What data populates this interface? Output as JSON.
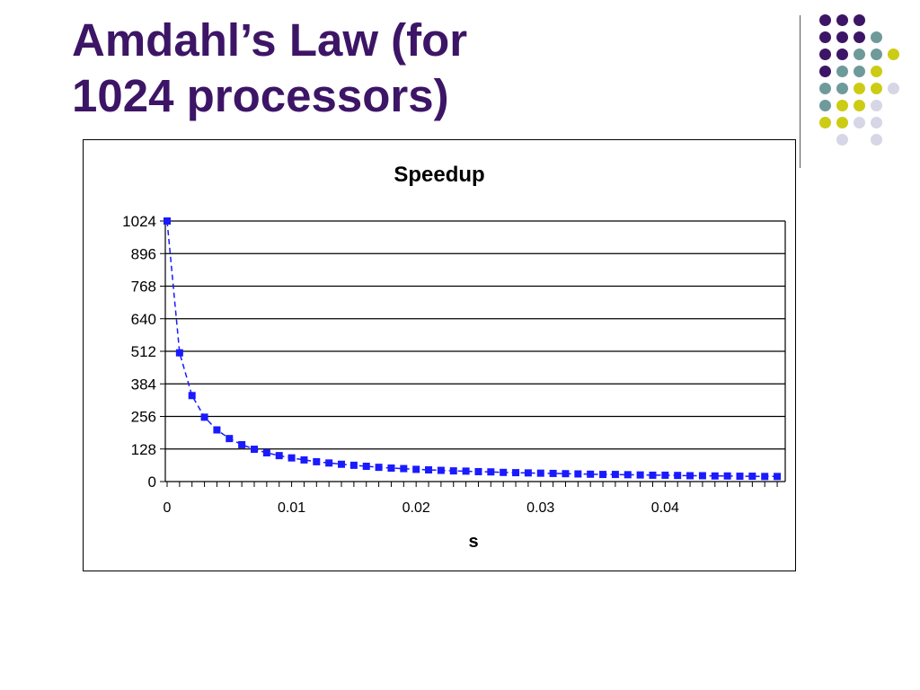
{
  "slide": {
    "title_line1": "Amdahl’s Law (for",
    "title_line2": "1024 processors)",
    "title_color": "#3d1566"
  },
  "decoration": {
    "dot_colors": {
      "purple": "#3d1566",
      "teal": "#6f9a9a",
      "yellow": "#cccc14",
      "lavender": "#d6d6e6"
    }
  },
  "chart_data": {
    "type": "line",
    "title": "Speedup",
    "xlabel": "s",
    "ylabel": "",
    "xlim": [
      0,
      0.049
    ],
    "ylim": [
      0,
      1024
    ],
    "x_ticks": [
      0,
      0.01,
      0.02,
      0.03,
      0.04
    ],
    "x_tick_labels": [
      "0",
      "0.01",
      "0.02",
      "0.03",
      "0.04"
    ],
    "y_ticks": [
      0,
      128,
      256,
      384,
      512,
      640,
      768,
      896,
      1024
    ],
    "y_tick_labels": [
      "0",
      "128",
      "256",
      "384",
      "512",
      "640",
      "768",
      "896",
      "1024"
    ],
    "grid": true,
    "legend": "none",
    "line_style": "dashed",
    "marker": "square",
    "series_color": "#1a1aff",
    "series": [
      {
        "name": "",
        "x": [
          0,
          0.001,
          0.002,
          0.003,
          0.004,
          0.005,
          0.006,
          0.007,
          0.008,
          0.009,
          0.01,
          0.011,
          0.012,
          0.013,
          0.014,
          0.015,
          0.016,
          0.017,
          0.018,
          0.019,
          0.02,
          0.021,
          0.022,
          0.023,
          0.024,
          0.025,
          0.026,
          0.027,
          0.028,
          0.029,
          0.03,
          0.031,
          0.032,
          0.033,
          0.034,
          0.035,
          0.036,
          0.037,
          0.038,
          0.039,
          0.04,
          0.041,
          0.042,
          0.043,
          0.044,
          0.045,
          0.046,
          0.047,
          0.048,
          0.049
        ],
        "y": [
          1024,
          506,
          338,
          253,
          203,
          169,
          145,
          127,
          113,
          102,
          93,
          85,
          78,
          73,
          68,
          64,
          60,
          56,
          53,
          51,
          48,
          46,
          44,
          42,
          41,
          39,
          38,
          36,
          35,
          34,
          33,
          32,
          31,
          30,
          29,
          28,
          28,
          27,
          26,
          25,
          25,
          24,
          23,
          23,
          22,
          22,
          21,
          21,
          20,
          20
        ]
      }
    ]
  }
}
